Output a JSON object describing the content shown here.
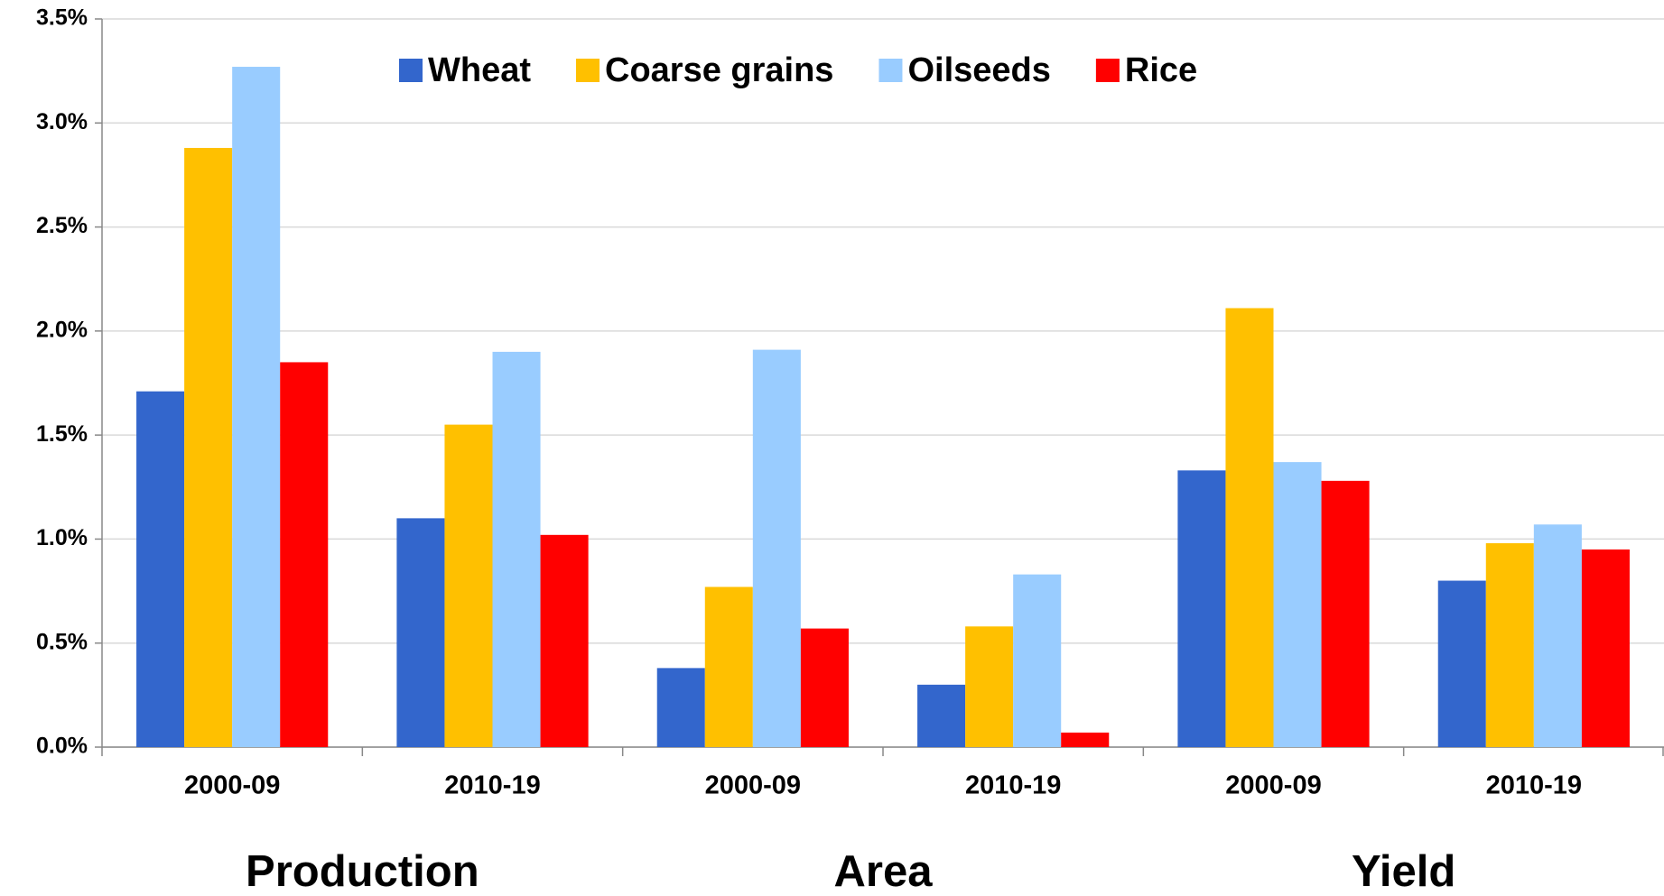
{
  "chart_data": {
    "type": "bar",
    "categories": [
      "2000-09",
      "2010-19",
      "2000-09",
      "2010-19",
      "2000-09",
      "2010-19"
    ],
    "group_labels": [
      "Production",
      "Area",
      "Yield"
    ],
    "series": [
      {
        "name": "Wheat",
        "color": "#3366cc",
        "values": [
          1.71,
          1.1,
          0.38,
          0.3,
          1.33,
          0.8
        ]
      },
      {
        "name": "Coarse grains",
        "color": "#ffc000",
        "values": [
          2.88,
          1.55,
          0.77,
          0.58,
          2.11,
          0.98
        ]
      },
      {
        "name": "Oilseeds",
        "color": "#99ccff",
        "values": [
          3.27,
          1.9,
          1.91,
          0.83,
          1.37,
          1.07
        ]
      },
      {
        "name": "Rice",
        "color": "#ff0000",
        "values": [
          1.85,
          1.02,
          0.57,
          0.07,
          1.28,
          0.95
        ]
      }
    ],
    "ylim": [
      0,
      3.5
    ],
    "yticks": [
      {
        "value": 0,
        "label": "0.0%"
      },
      {
        "value": 0.5,
        "label": "0.5%"
      },
      {
        "value": 1,
        "label": "1.0%"
      },
      {
        "value": 1.5,
        "label": "1.5%"
      },
      {
        "value": 2,
        "label": "2.0%"
      },
      {
        "value": 2.5,
        "label": "2.5%"
      },
      {
        "value": 3,
        "label": "3.0%"
      },
      {
        "value": 3.5,
        "label": "3.5%"
      }
    ],
    "grid": true,
    "legend": "top"
  }
}
